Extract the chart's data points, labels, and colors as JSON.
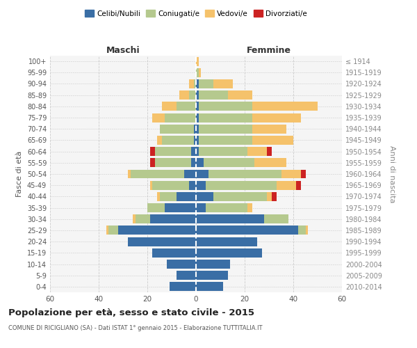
{
  "age_groups": [
    "0-4",
    "5-9",
    "10-14",
    "15-19",
    "20-24",
    "25-29",
    "30-34",
    "35-39",
    "40-44",
    "45-49",
    "50-54",
    "55-59",
    "60-64",
    "65-69",
    "70-74",
    "75-79",
    "80-84",
    "85-89",
    "90-94",
    "95-99",
    "100+"
  ],
  "birth_years": [
    "2010-2014",
    "2005-2009",
    "2000-2004",
    "1995-1999",
    "1990-1994",
    "1985-1989",
    "1980-1984",
    "1975-1979",
    "1970-1974",
    "1965-1969",
    "1960-1964",
    "1955-1959",
    "1950-1954",
    "1945-1949",
    "1940-1944",
    "1935-1939",
    "1930-1934",
    "1925-1929",
    "1920-1924",
    "1915-1919",
    "≤ 1914"
  ],
  "colors": {
    "celibi": "#3a6ea5",
    "coniugati": "#b5c98e",
    "vedovi": "#f5c26b",
    "divorziati": "#cc2222"
  },
  "maschi": {
    "celibi": [
      11,
      8,
      12,
      18,
      28,
      32,
      19,
      13,
      8,
      3,
      5,
      2,
      2,
      1,
      1,
      0,
      0,
      0,
      0,
      0,
      0
    ],
    "coniugati": [
      0,
      0,
      0,
      0,
      0,
      4,
      6,
      7,
      7,
      15,
      22,
      15,
      15,
      13,
      14,
      13,
      8,
      3,
      1,
      0,
      0
    ],
    "vedovi": [
      0,
      0,
      0,
      0,
      0,
      1,
      1,
      0,
      1,
      1,
      1,
      0,
      0,
      2,
      0,
      5,
      6,
      4,
      2,
      0,
      0
    ],
    "divorziati": [
      0,
      0,
      0,
      0,
      0,
      0,
      0,
      0,
      0,
      0,
      0,
      2,
      2,
      0,
      0,
      0,
      0,
      0,
      0,
      0,
      0
    ]
  },
  "femmine": {
    "celibi": [
      11,
      13,
      14,
      27,
      25,
      42,
      28,
      4,
      7,
      4,
      5,
      3,
      1,
      1,
      1,
      1,
      1,
      1,
      1,
      0,
      0
    ],
    "coniugati": [
      0,
      0,
      0,
      0,
      0,
      3,
      10,
      17,
      22,
      29,
      30,
      21,
      20,
      22,
      22,
      22,
      22,
      12,
      6,
      1,
      0
    ],
    "vedovi": [
      0,
      0,
      0,
      0,
      0,
      1,
      0,
      2,
      2,
      8,
      8,
      13,
      8,
      17,
      14,
      20,
      27,
      10,
      8,
      1,
      1
    ],
    "divorziati": [
      0,
      0,
      0,
      0,
      0,
      0,
      0,
      0,
      2,
      2,
      2,
      0,
      2,
      0,
      0,
      0,
      0,
      0,
      0,
      0,
      0
    ]
  },
  "xlim": 60,
  "title": "Popolazione per età, sesso e stato civile - 2015",
  "subtitle": "COMUNE DI RICIGLIANO (SA) - Dati ISTAT 1° gennaio 2015 - Elaborazione TUTTITALIA.IT",
  "xlabel_left": "Maschi",
  "xlabel_right": "Femmine",
  "ylabel_left": "Fasce di età",
  "ylabel_right": "Anni di nascita",
  "legend_labels": [
    "Celibi/Nubili",
    "Coniugati/e",
    "Vedovi/e",
    "Divorziati/e"
  ],
  "bg_color": "#f5f5f5",
  "grid_color": "#cccccc"
}
